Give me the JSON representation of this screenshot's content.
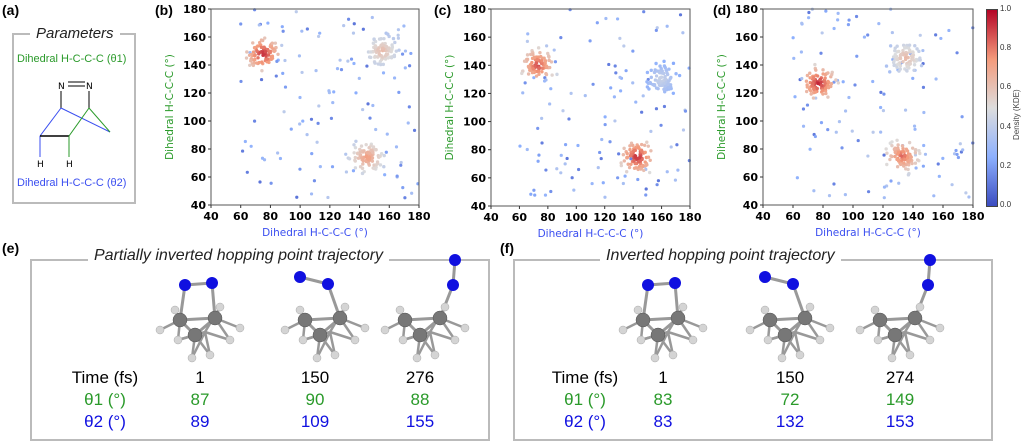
{
  "panels": {
    "a": "(a)",
    "b": "(b)",
    "c": "(c)",
    "d": "(d)",
    "e": "(e)",
    "f": "(f)"
  },
  "parameters": {
    "title": "Parameters",
    "theta1": "Dihedral H-C-C-C (θ1)",
    "theta2": "Dihedral H-C-C-C (θ2)",
    "atom_N": "N",
    "atom_H": "H",
    "colors": {
      "theta1": "#2a9a2a",
      "theta2": "#3a4ef0"
    }
  },
  "colorbar": {
    "label": "Density (KDE)",
    "ticks": [
      "1.0",
      "0.8",
      "0.6",
      "0.4",
      "0.2",
      "0.0"
    ],
    "colormap": "coolwarm"
  },
  "chart_data": [
    {
      "panel": "b",
      "type": "scatter",
      "xlabel": "Dihedral H-C-C-C (°)",
      "ylabel": "Dihedral H-C-C-C (°)",
      "xlim": [
        40,
        180
      ],
      "ylim": [
        40,
        180
      ],
      "xticks": [
        "40",
        "60",
        "80",
        "100",
        "120",
        "140",
        "160",
        "180"
      ],
      "yticks": [
        "40",
        "60",
        "80",
        "100",
        "120",
        "140",
        "160",
        "180"
      ],
      "clusters": [
        {
          "x": 75,
          "y": 148,
          "density": 0.95
        },
        {
          "x": 145,
          "y": 74,
          "density": 0.75
        },
        {
          "x": 155,
          "y": 150,
          "density": 0.65
        }
      ]
    },
    {
      "panel": "c",
      "type": "scatter",
      "xlabel": "Dihedral H-C-C-C (°)",
      "ylabel": "Dihedral H-C-C-C (°)",
      "xlim": [
        40,
        180
      ],
      "ylim": [
        40,
        180
      ],
      "xticks": [
        "40",
        "60",
        "80",
        "100",
        "120",
        "140",
        "160",
        "180"
      ],
      "yticks": [
        "40",
        "60",
        "80",
        "100",
        "120",
        "140",
        "160",
        "180"
      ],
      "clusters": [
        {
          "x": 73,
          "y": 140,
          "density": 0.9
        },
        {
          "x": 143,
          "y": 75,
          "density": 0.95
        },
        {
          "x": 160,
          "y": 130,
          "density": 0.45
        }
      ]
    },
    {
      "panel": "d",
      "type": "scatter",
      "xlabel": "Dihedral H-C-C-C (°)",
      "ylabel": "Dihedral H-C-C-C (°)",
      "xlim": [
        40,
        180
      ],
      "ylim": [
        40,
        180
      ],
      "xticks": [
        "40",
        "60",
        "80",
        "100",
        "120",
        "140",
        "160",
        "180"
      ],
      "yticks": [
        "40",
        "60",
        "80",
        "100",
        "120",
        "140",
        "160",
        "180"
      ],
      "clusters": [
        {
          "x": 77,
          "y": 127,
          "density": 0.95
        },
        {
          "x": 133,
          "y": 75,
          "density": 0.85
        },
        {
          "x": 135,
          "y": 145,
          "density": 0.65
        }
      ]
    }
  ],
  "trajectories": [
    {
      "title": "Partially inverted hopping point trajectory",
      "row_labels": {
        "time": "Time (fs)",
        "theta1": "θ1 (°)",
        "theta2": "θ2 (°)"
      },
      "columns": [
        {
          "time": "1",
          "theta1": "87",
          "theta2": "89"
        },
        {
          "time": "150",
          "theta1": "90",
          "theta2": "109"
        },
        {
          "time": "276",
          "theta1": "88",
          "theta2": "155"
        }
      ]
    },
    {
      "title": "Inverted hopping point trajectory",
      "row_labels": {
        "time": "Time (fs)",
        "theta1": "θ1 (°)",
        "theta2": "θ2 (°)"
      },
      "columns": [
        {
          "time": "1",
          "theta1": "83",
          "theta2": "83"
        },
        {
          "time": "150",
          "theta1": "72",
          "theta2": "132"
        },
        {
          "time": "274",
          "theta1": "149",
          "theta2": "153"
        }
      ]
    }
  ]
}
